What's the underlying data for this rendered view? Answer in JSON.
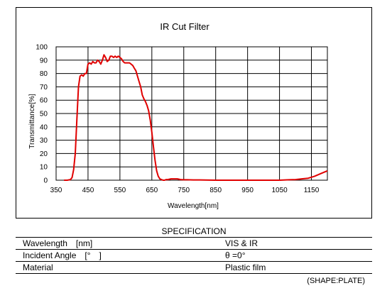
{
  "chart_data": {
    "type": "line",
    "title": "IR Cut Filter",
    "xlabel": "Wavelength[nm]",
    "ylabel": "Transmittance[%]",
    "xlim": [
      350,
      1200
    ],
    "ylim": [
      0,
      100
    ],
    "x_ticks": [
      "350",
      "450",
      "550",
      "650",
      "750",
      "850",
      "950",
      "1050",
      "1150"
    ],
    "y_ticks": [
      "0",
      "10",
      "20",
      "30",
      "40",
      "50",
      "60",
      "70",
      "80",
      "90",
      "100"
    ],
    "grid": true,
    "line_color": "#e00000",
    "series": [
      {
        "x": [
          375,
          385,
          395,
          400,
          405,
          410,
          415,
          420,
          425,
          430,
          435,
          440,
          445,
          450,
          455,
          460,
          465,
          470,
          475,
          480,
          485,
          490,
          495,
          500,
          505,
          510,
          515,
          520,
          525,
          530,
          535,
          540,
          545,
          550,
          555,
          560,
          565,
          570,
          575,
          580,
          585,
          590,
          595,
          600,
          605,
          610,
          615,
          620,
          625,
          630,
          635,
          640,
          645,
          650,
          655,
          660,
          665,
          670,
          675,
          680,
          685,
          690,
          695,
          700,
          710,
          720,
          730,
          740,
          750,
          760,
          780,
          800,
          850,
          900,
          950,
          1000,
          1050,
          1080,
          1100,
          1120,
          1140,
          1160,
          1180,
          1200
        ],
        "y": [
          0,
          0,
          0.5,
          2,
          8,
          20,
          45,
          70,
          78,
          79,
          78,
          80,
          80,
          87,
          88,
          87,
          89,
          88,
          88,
          90,
          89,
          87,
          90,
          94,
          92,
          89,
          90,
          93,
          93,
          92,
          93,
          92,
          93,
          92,
          91,
          89,
          88,
          88,
          88,
          88,
          87,
          86,
          84,
          82,
          78,
          74,
          70,
          64,
          61,
          59,
          56,
          52,
          45,
          36,
          25,
          15,
          7,
          3,
          1,
          0.5,
          0,
          0,
          0.5,
          0.5,
          1,
          1,
          1,
          0.5,
          0.3,
          0.3,
          0.2,
          0.2,
          0,
          0,
          0,
          0,
          0,
          0.3,
          0.5,
          1,
          1.5,
          3,
          5,
          7
        ]
      }
    ]
  },
  "spec": {
    "title": "SPECIFICATION",
    "rows": [
      {
        "label": "Wavelength　[nm]",
        "value": "VIS & IR"
      },
      {
        "label": "Incident Angle　[°　]",
        "value": "θ =0°"
      },
      {
        "label": "Material",
        "value": "Plastic film"
      }
    ],
    "shape_note": "(SHAPE:PLATE)"
  }
}
